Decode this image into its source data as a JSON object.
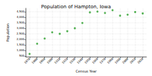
{
  "chart_data": {
    "type": "scatter",
    "title": "Population of Hampton, Iowa",
    "x_label": "Census Year",
    "y_label": "Population",
    "x": [
      1870,
      1880,
      1890,
      1900,
      1910,
      1920,
      1930,
      1940,
      1950,
      1960,
      1970,
      1980,
      1990,
      2000,
      2010,
      2020
    ],
    "values": [
      668,
      1597,
      2067,
      2630,
      2493,
      2727,
      2994,
      3473,
      4432,
      4501,
      4376,
      4630,
      4133,
      4218,
      4461,
      4337
    ],
    "color": "#2ca02c",
    "marker": "circle",
    "xlim": [
      1865,
      2025
    ],
    "xticks": [
      1870,
      1880,
      1890,
      1900,
      1910,
      1920,
      1930,
      1940,
      1950,
      1960,
      1970,
      1980,
      1990,
      2000,
      2010,
      2020
    ],
    "ylim": [
      400,
      4800
    ],
    "yticks": [
      500,
      {
        "value": 1000,
        "label": "1,000"
      },
      {
        "value": 1500,
        "label": "1,500"
      },
      {
        "value": 2000,
        "label": "2,000"
      },
      {
        "value": 2500,
        "label": "2,500"
      },
      {
        "value": 3000,
        "label": "3,000"
      },
      {
        "value": 3500,
        "label": "3,500"
      },
      {
        "value": 4000,
        "label": "4,000"
      },
      {
        "value": 4500,
        "label": "4,500"
      }
    ],
    "grid": true
  }
}
